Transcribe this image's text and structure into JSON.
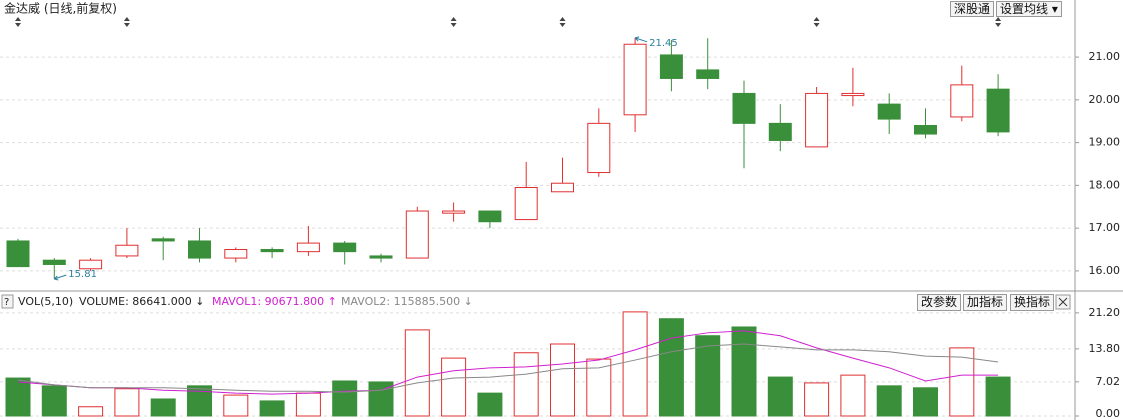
{
  "chart_data": [
    {
      "type": "candlestick",
      "title": "金达威 (日线,前复权)",
      "open": [
        16.7,
        16.25,
        16.05,
        16.35,
        16.75,
        16.7,
        16.3,
        16.5,
        16.45,
        16.65,
        16.35,
        16.3,
        17.35,
        17.4,
        17.2,
        17.85,
        18.3,
        19.65,
        21.05,
        20.7,
        20.15,
        19.45,
        18.9,
        20.1,
        19.9,
        19.4,
        19.6,
        20.25
      ],
      "high": [
        16.75,
        16.3,
        16.3,
        17.0,
        16.8,
        17.0,
        16.55,
        16.55,
        17.05,
        16.7,
        16.4,
        17.5,
        17.6,
        17.4,
        18.55,
        18.65,
        19.8,
        21.45,
        21.4,
        21.44,
        20.45,
        19.9,
        20.3,
        20.75,
        20.15,
        19.8,
        20.8,
        20.6
      ],
      "low": [
        16.1,
        15.81,
        16.0,
        16.3,
        16.25,
        16.2,
        16.2,
        16.3,
        16.35,
        16.15,
        16.2,
        16.3,
        17.15,
        17.0,
        17.2,
        17.85,
        18.2,
        19.25,
        20.2,
        20.25,
        18.4,
        18.8,
        18.9,
        19.85,
        19.2,
        19.1,
        19.5,
        19.15
      ],
      "close": [
        16.1,
        16.15,
        16.25,
        16.6,
        16.7,
        16.3,
        16.5,
        16.45,
        16.65,
        16.45,
        16.3,
        17.4,
        17.4,
        17.15,
        17.95,
        18.05,
        19.45,
        21.3,
        20.5,
        20.5,
        19.45,
        19.05,
        20.15,
        20.15,
        19.55,
        19.2,
        20.35,
        19.25
      ],
      "up_color": "#e03030",
      "down_color": "#3a8f3a",
      "ylim": [
        15.6,
        21.68
      ],
      "yticks": [
        {
          "value": 21,
          "label": "21.00"
        },
        {
          "value": 20,
          "label": "20.00"
        },
        {
          "value": 19,
          "label": "19.00"
        },
        {
          "value": 18,
          "label": "18.00"
        },
        {
          "value": 17,
          "label": "17.00"
        },
        {
          "value": 16,
          "label": "16.00"
        }
      ],
      "grid": true,
      "buttons": [
        "深股通",
        "设置均线 ▾"
      ]
    },
    {
      "type": "bar",
      "title": "VOL(5,10)",
      "values": [
        7.8,
        6.2,
        1.9,
        5.6,
        3.5,
        6.2,
        4.3,
        3.1,
        4.7,
        7.2,
        7.0,
        17.7,
        11.9,
        4.7,
        13.0,
        14.8,
        11.7,
        21.4,
        20.0,
        16.5,
        18.3,
        8.0,
        6.8,
        8.4,
        6.2,
        5.8,
        14.0,
        8.0
      ],
      "readouts": [
        "VOLUME: 86641.000 ↓",
        "MAVOL1: 90671.800 ↑",
        "MAVOL2: 115885.500 ↓"
      ],
      "series": [
        {
          "name": "MAVOL1",
          "color": "#d020d0",
          "values": [
            7.0,
            6.4,
            5.8,
            5.8,
            5.3,
            5.1,
            4.7,
            4.5,
            4.7,
            5.1,
            5.3,
            8.0,
            9.3,
            9.9,
            10.1,
            10.7,
            11.5,
            13.6,
            16.0,
            17.1,
            17.5,
            16.5,
            14.0,
            11.9,
            9.9,
            7.2,
            8.4,
            8.4
          ]
        },
        {
          "name": "MAVOL2",
          "color": "#888888",
          "values": [
            7.4,
            6.4,
            5.8,
            5.8,
            5.8,
            5.6,
            5.3,
            5.1,
            5.1,
            4.9,
            5.3,
            6.8,
            7.8,
            8.0,
            8.6,
            9.7,
            9.9,
            11.5,
            13.2,
            14.4,
            14.8,
            14.2,
            13.6,
            13.6,
            13.2,
            12.3,
            12.1,
            11.1
          ]
        }
      ],
      "ylim": [
        0,
        22.2
      ],
      "yticks": [
        {
          "value": 21.2,
          "label": "21.20"
        },
        {
          "value": 13.8,
          "label": "13.80"
        },
        7.02,
        {
          "value": 0,
          "label": "0.00"
        }
      ],
      "grid": true,
      "buttons": [
        "改参数",
        "加指标",
        "换指标"
      ]
    }
  ]
}
